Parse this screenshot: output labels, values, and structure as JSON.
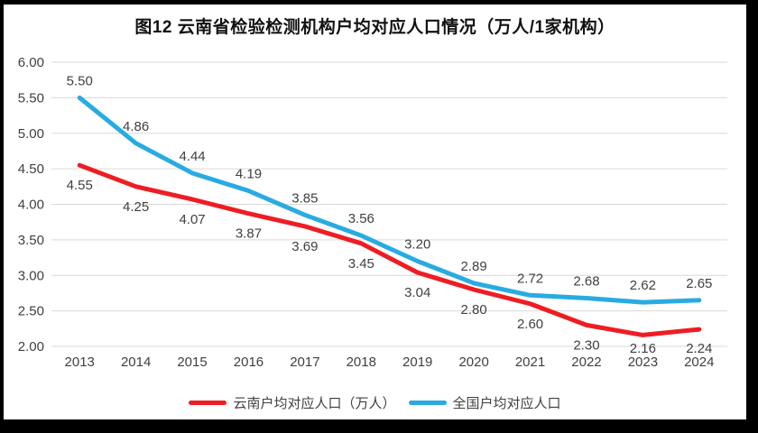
{
  "chart_data": {
    "type": "line",
    "title": "图12  云南省检验检测机构户均对应人口情况（万人/1家机构）",
    "categories": [
      "2013",
      "2014",
      "2015",
      "2016",
      "2017",
      "2018",
      "2019",
      "2020",
      "2021",
      "2022",
      "2023",
      "2024"
    ],
    "series": [
      {
        "name": "云南户均对应人口（万人）",
        "color": "#EE1D23",
        "values": [
          4.55,
          4.25,
          4.07,
          3.87,
          3.69,
          3.45,
          3.04,
          2.8,
          2.6,
          2.3,
          2.16,
          2.24
        ],
        "label_position": "below"
      },
      {
        "name": "全国户均对应人口",
        "color": "#29ABE2",
        "values": [
          5.5,
          4.86,
          4.44,
          4.19,
          3.85,
          3.56,
          3.2,
          2.89,
          2.72,
          2.68,
          2.62,
          2.65
        ],
        "label_position": "above"
      }
    ],
    "ylim": [
      2.0,
      6.0
    ],
    "ytick_step": 0.5,
    "yticks": [
      "6.00",
      "5.50",
      "5.00",
      "4.50",
      "4.00",
      "3.50",
      "3.00",
      "2.50",
      "2.00"
    ],
    "grid": true,
    "gridline_color": "#D9D9D9",
    "label_color": "#404040",
    "value_label_decimals": 2,
    "legend_position": "bottom"
  }
}
